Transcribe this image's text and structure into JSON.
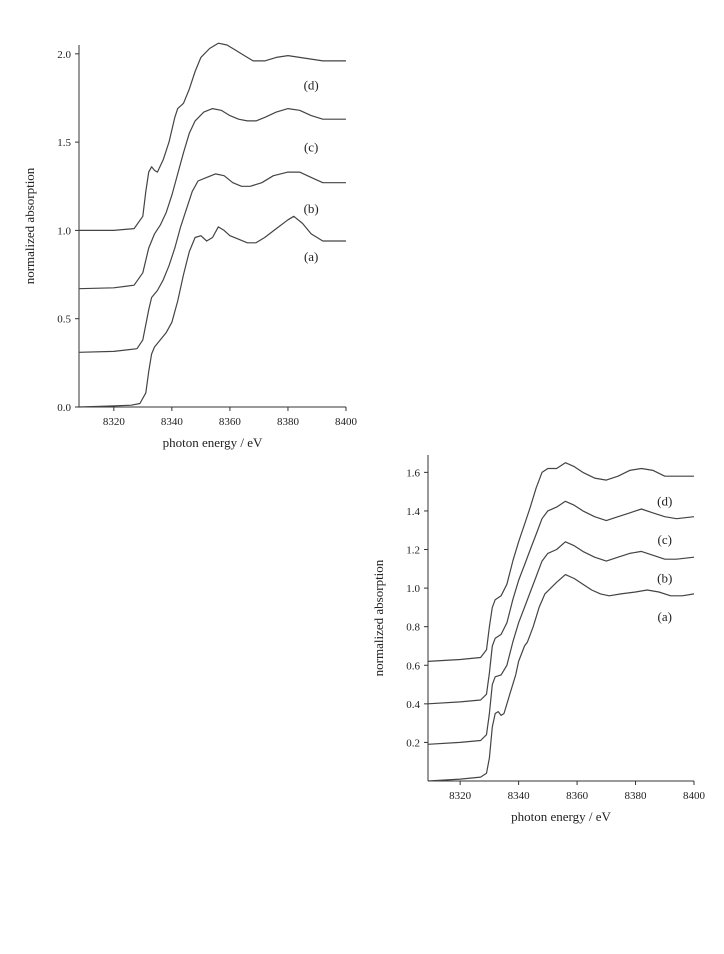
{
  "chart_data": [
    {
      "type": "line",
      "xlabel": "photon energy / eV",
      "ylabel": "normalized absorption",
      "xlim": [
        8308,
        8400
      ],
      "ylim": [
        0,
        2.05
      ],
      "xticks": [
        "8320",
        "8340",
        "8360",
        "8380",
        "8400"
      ],
      "xtick_values": [
        8320,
        8340,
        8360,
        8380,
        8400
      ],
      "yticks": [
        "0.0",
        "0.5",
        "1.0",
        "1.5",
        "2.0"
      ],
      "ytick_values": [
        0,
        0.5,
        1.0,
        1.5,
        2.0
      ],
      "series": [
        {
          "name": "(a)",
          "label_at": [
            8388,
            0.85
          ],
          "points": [
            [
              8308,
              0.0
            ],
            [
              8318,
              0.005
            ],
            [
              8326,
              0.01
            ],
            [
              8329,
              0.02
            ],
            [
              8331,
              0.08
            ],
            [
              8332,
              0.2
            ],
            [
              8333,
              0.3
            ],
            [
              8334,
              0.34
            ],
            [
              8336,
              0.38
            ],
            [
              8338,
              0.42
            ],
            [
              8340,
              0.48
            ],
            [
              8342,
              0.6
            ],
            [
              8344,
              0.75
            ],
            [
              8346,
              0.88
            ],
            [
              8348,
              0.96
            ],
            [
              8350,
              0.97
            ],
            [
              8352,
              0.94
            ],
            [
              8354,
              0.96
            ],
            [
              8356,
              1.02
            ],
            [
              8358,
              1.0
            ],
            [
              8360,
              0.97
            ],
            [
              8363,
              0.95
            ],
            [
              8366,
              0.93
            ],
            [
              8369,
              0.93
            ],
            [
              8372,
              0.96
            ],
            [
              8376,
              1.01
            ],
            [
              8380,
              1.06
            ],
            [
              8382,
              1.08
            ],
            [
              8385,
              1.04
            ],
            [
              8388,
              0.98
            ],
            [
              8392,
              0.94
            ],
            [
              8396,
              0.94
            ],
            [
              8400,
              0.94
            ]
          ]
        },
        {
          "name": "(b)",
          "label_at": [
            8388,
            1.12
          ],
          "points": [
            [
              8308,
              0.31
            ],
            [
              8320,
              0.315
            ],
            [
              8328,
              0.33
            ],
            [
              8330,
              0.38
            ],
            [
              8332,
              0.55
            ],
            [
              8333,
              0.62
            ],
            [
              8335,
              0.66
            ],
            [
              8337,
              0.72
            ],
            [
              8339,
              0.8
            ],
            [
              8341,
              0.9
            ],
            [
              8343,
              1.02
            ],
            [
              8345,
              1.12
            ],
            [
              8347,
              1.22
            ],
            [
              8349,
              1.28
            ],
            [
              8352,
              1.3
            ],
            [
              8355,
              1.32
            ],
            [
              8358,
              1.31
            ],
            [
              8361,
              1.27
            ],
            [
              8364,
              1.25
            ],
            [
              8367,
              1.25
            ],
            [
              8371,
              1.27
            ],
            [
              8375,
              1.31
            ],
            [
              8380,
              1.33
            ],
            [
              8384,
              1.33
            ],
            [
              8388,
              1.3
            ],
            [
              8392,
              1.27
            ],
            [
              8396,
              1.27
            ],
            [
              8400,
              1.27
            ]
          ]
        },
        {
          "name": "(c)",
          "label_at": [
            8388,
            1.47
          ],
          "points": [
            [
              8308,
              0.67
            ],
            [
              8320,
              0.675
            ],
            [
              8327,
              0.69
            ],
            [
              8330,
              0.76
            ],
            [
              8332,
              0.9
            ],
            [
              8334,
              0.98
            ],
            [
              8336,
              1.03
            ],
            [
              8338,
              1.1
            ],
            [
              8340,
              1.2
            ],
            [
              8342,
              1.32
            ],
            [
              8344,
              1.44
            ],
            [
              8346,
              1.55
            ],
            [
              8348,
              1.62
            ],
            [
              8351,
              1.67
            ],
            [
              8354,
              1.69
            ],
            [
              8357,
              1.68
            ],
            [
              8360,
              1.65
            ],
            [
              8363,
              1.63
            ],
            [
              8366,
              1.62
            ],
            [
              8369,
              1.62
            ],
            [
              8372,
              1.64
            ],
            [
              8376,
              1.67
            ],
            [
              8380,
              1.69
            ],
            [
              8384,
              1.68
            ],
            [
              8388,
              1.65
            ],
            [
              8392,
              1.63
            ],
            [
              8396,
              1.63
            ],
            [
              8400,
              1.63
            ]
          ]
        },
        {
          "name": "(d)",
          "label_at": [
            8388,
            1.82
          ],
          "points": [
            [
              8308,
              1.0
            ],
            [
              8320,
              1.0
            ],
            [
              8327,
              1.01
            ],
            [
              8330,
              1.08
            ],
            [
              8331,
              1.22
            ],
            [
              8332,
              1.33
            ],
            [
              8333,
              1.36
            ],
            [
              8334,
              1.34
            ],
            [
              8335,
              1.33
            ],
            [
              8337,
              1.4
            ],
            [
              8339,
              1.5
            ],
            [
              8341,
              1.64
            ],
            [
              8342,
              1.69
            ],
            [
              8344,
              1.72
            ],
            [
              8346,
              1.8
            ],
            [
              8348,
              1.9
            ],
            [
              8350,
              1.98
            ],
            [
              8353,
              2.03
            ],
            [
              8356,
              2.06
            ],
            [
              8359,
              2.05
            ],
            [
              8362,
              2.02
            ],
            [
              8365,
              1.99
            ],
            [
              8368,
              1.96
            ],
            [
              8372,
              1.96
            ],
            [
              8376,
              1.98
            ],
            [
              8380,
              1.99
            ],
            [
              8384,
              1.98
            ],
            [
              8388,
              1.97
            ],
            [
              8392,
              1.96
            ],
            [
              8396,
              1.96
            ],
            [
              8400,
              1.96
            ]
          ]
        }
      ]
    },
    {
      "type": "line",
      "xlabel": "photon energy / eV",
      "ylabel": "normalized absorption",
      "xlim": [
        8309,
        8400
      ],
      "ylim": [
        0,
        1.69
      ],
      "xticks": [
        "8320",
        "8340",
        "8360",
        "8380",
        "8400"
      ],
      "xtick_values": [
        8320,
        8340,
        8360,
        8380,
        8400
      ],
      "yticks": [
        "0.2",
        "0.4",
        "0.6",
        "0.8",
        "1.0",
        "1.2",
        "1.4",
        "1.6"
      ],
      "ytick_values": [
        0.2,
        0.4,
        0.6,
        0.8,
        1.0,
        1.2,
        1.4,
        1.6
      ],
      "series": [
        {
          "name": "(a)",
          "label_at": [
            8390,
            0.85
          ],
          "points": [
            [
              8309,
              0.0
            ],
            [
              8320,
              0.01
            ],
            [
              8327,
              0.02
            ],
            [
              8329,
              0.04
            ],
            [
              8330,
              0.12
            ],
            [
              8331,
              0.28
            ],
            [
              8332,
              0.35
            ],
            [
              8333,
              0.36
            ],
            [
              8334,
              0.34
            ],
            [
              8335,
              0.35
            ],
            [
              8337,
              0.45
            ],
            [
              8339,
              0.55
            ],
            [
              8340,
              0.62
            ],
            [
              8342,
              0.7
            ],
            [
              8343,
              0.72
            ],
            [
              8345,
              0.8
            ],
            [
              8347,
              0.9
            ],
            [
              8349,
              0.97
            ],
            [
              8351,
              1.0
            ],
            [
              8353,
              1.03
            ],
            [
              8356,
              1.07
            ],
            [
              8359,
              1.05
            ],
            [
              8362,
              1.02
            ],
            [
              8365,
              0.99
            ],
            [
              8368,
              0.97
            ],
            [
              8371,
              0.96
            ],
            [
              8375,
              0.97
            ],
            [
              8380,
              0.98
            ],
            [
              8384,
              0.99
            ],
            [
              8388,
              0.98
            ],
            [
              8392,
              0.96
            ],
            [
              8396,
              0.96
            ],
            [
              8400,
              0.97
            ]
          ]
        },
        {
          "name": "(b)",
          "label_at": [
            8390,
            1.05
          ],
          "points": [
            [
              8309,
              0.19
            ],
            [
              8320,
              0.2
            ],
            [
              8327,
              0.21
            ],
            [
              8329,
              0.24
            ],
            [
              8330,
              0.35
            ],
            [
              8331,
              0.5
            ],
            [
              8332,
              0.54
            ],
            [
              8334,
              0.55
            ],
            [
              8336,
              0.6
            ],
            [
              8338,
              0.72
            ],
            [
              8340,
              0.82
            ],
            [
              8342,
              0.9
            ],
            [
              8344,
              0.98
            ],
            [
              8346,
              1.06
            ],
            [
              8348,
              1.14
            ],
            [
              8350,
              1.18
            ],
            [
              8353,
              1.2
            ],
            [
              8356,
              1.24
            ],
            [
              8359,
              1.22
            ],
            [
              8362,
              1.19
            ],
            [
              8366,
              1.16
            ],
            [
              8370,
              1.14
            ],
            [
              8374,
              1.16
            ],
            [
              8378,
              1.18
            ],
            [
              8382,
              1.19
            ],
            [
              8386,
              1.17
            ],
            [
              8390,
              1.15
            ],
            [
              8394,
              1.15
            ],
            [
              8400,
              1.16
            ]
          ]
        },
        {
          "name": "(c)",
          "label_at": [
            8390,
            1.25
          ],
          "points": [
            [
              8309,
              0.4
            ],
            [
              8320,
              0.41
            ],
            [
              8327,
              0.42
            ],
            [
              8329,
              0.45
            ],
            [
              8330,
              0.56
            ],
            [
              8331,
              0.7
            ],
            [
              8332,
              0.74
            ],
            [
              8334,
              0.76
            ],
            [
              8336,
              0.82
            ],
            [
              8338,
              0.94
            ],
            [
              8340,
              1.04
            ],
            [
              8342,
              1.12
            ],
            [
              8344,
              1.2
            ],
            [
              8346,
              1.28
            ],
            [
              8348,
              1.36
            ],
            [
              8350,
              1.4
            ],
            [
              8353,
              1.42
            ],
            [
              8356,
              1.45
            ],
            [
              8359,
              1.43
            ],
            [
              8362,
              1.4
            ],
            [
              8366,
              1.37
            ],
            [
              8370,
              1.35
            ],
            [
              8374,
              1.37
            ],
            [
              8378,
              1.39
            ],
            [
              8382,
              1.41
            ],
            [
              8386,
              1.39
            ],
            [
              8390,
              1.37
            ],
            [
              8394,
              1.36
            ],
            [
              8400,
              1.37
            ]
          ]
        },
        {
          "name": "(d)",
          "label_at": [
            8390,
            1.45
          ],
          "points": [
            [
              8309,
              0.62
            ],
            [
              8320,
              0.63
            ],
            [
              8327,
              0.64
            ],
            [
              8329,
              0.68
            ],
            [
              8330,
              0.8
            ],
            [
              8331,
              0.9
            ],
            [
              8332,
              0.94
            ],
            [
              8334,
              0.96
            ],
            [
              8336,
              1.02
            ],
            [
              8338,
              1.14
            ],
            [
              8340,
              1.24
            ],
            [
              8342,
              1.33
            ],
            [
              8344,
              1.42
            ],
            [
              8346,
              1.52
            ],
            [
              8348,
              1.6
            ],
            [
              8350,
              1.62
            ],
            [
              8353,
              1.62
            ],
            [
              8356,
              1.65
            ],
            [
              8359,
              1.63
            ],
            [
              8362,
              1.6
            ],
            [
              8366,
              1.57
            ],
            [
              8370,
              1.56
            ],
            [
              8374,
              1.58
            ],
            [
              8378,
              1.61
            ],
            [
              8382,
              1.62
            ],
            [
              8386,
              1.61
            ],
            [
              8390,
              1.58
            ],
            [
              8394,
              1.58
            ],
            [
              8400,
              1.58
            ]
          ]
        }
      ]
    }
  ]
}
